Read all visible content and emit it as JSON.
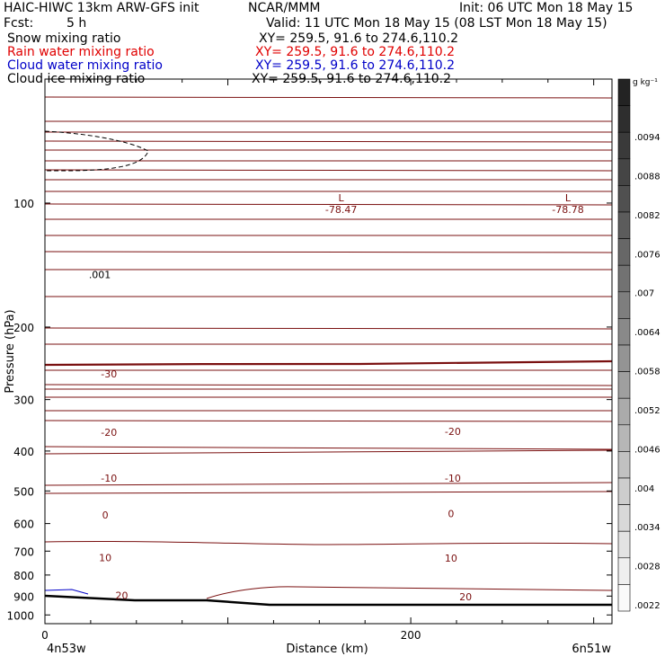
{
  "header": {
    "model": "HAIC-HIWC 13km ARW-GFS init",
    "org": "NCAR/MMM",
    "init": "Init: 06 UTC Mon 18 May 15",
    "fcst_label": "Fcst:",
    "fcst_value": "5 h",
    "valid": "Valid: 11 UTC Mon 18 May 15 (08 LST Mon 18 May 15)"
  },
  "fields": [
    {
      "label": "Snow mixing ratio",
      "xy": "XY= 259.5, 91.6 to 274.6,110.2",
      "color": "#000000"
    },
    {
      "label": "Rain water mixing ratio",
      "xy": "XY= 259.5, 91.6 to 274.6,110.2",
      "color": "#e00000"
    },
    {
      "label": "Cloud water mixing ratio",
      "xy": "XY= 259.5, 91.6 to 274.6,110.2",
      "color": "#0000c8"
    },
    {
      "label": "Cloud ice mixing ratio",
      "xy": "XY= 259.5, 91.6 to 274.6,110.2",
      "color": "#000000"
    }
  ],
  "chart_data": {
    "type": "contour-cross-section",
    "xlabel": "Distance (km)",
    "ylabel": "Pressure (hPa)",
    "x_ticks": [
      0,
      200
    ],
    "xlim": [
      0,
      310
    ],
    "y_ticks": [
      100,
      200,
      300,
      400,
      500,
      600,
      700,
      800,
      900,
      1000
    ],
    "ylim": [
      50,
      1050
    ],
    "y_scale": "log",
    "x_end_labels": [
      "4n53w",
      "6n51w"
    ],
    "colorbar": {
      "unit": "g kg⁻¹",
      "ticks": [
        ".0094",
        ".0088",
        ".0082",
        ".0076",
        ".007",
        ".0064",
        ".0058",
        ".0052",
        ".0046",
        ".004",
        ".0034",
        ".0028",
        ".0022"
      ]
    },
    "temperature_labels": [
      {
        "text": "-30",
        "x": 35,
        "p": 260
      },
      {
        "text": "-20",
        "x": 35,
        "p": 360
      },
      {
        "text": "-20",
        "x": 223,
        "p": 358
      },
      {
        "text": "-10",
        "x": 35,
        "p": 465
      },
      {
        "text": "-10",
        "x": 223,
        "p": 465
      },
      {
        "text": "0",
        "x": 33,
        "p": 572
      },
      {
        "text": "0",
        "x": 222,
        "p": 568
      },
      {
        "text": "10",
        "x": 33,
        "p": 725
      },
      {
        "text": "10",
        "x": 222,
        "p": 727
      },
      {
        "text": "20",
        "x": 42,
        "p": 897
      },
      {
        "text": "20",
        "x": 230,
        "p": 902
      }
    ],
    "lows": [
      {
        "marker": "L",
        "value": "-78.47",
        "x": 158,
        "p": 100
      },
      {
        "marker": "L",
        "value": "-78.78",
        "x": 282,
        "p": 100
      }
    ],
    "snow_contour_label": ".001",
    "snow_contour_label_pos": {
      "x": 30,
      "p": 164
    }
  }
}
